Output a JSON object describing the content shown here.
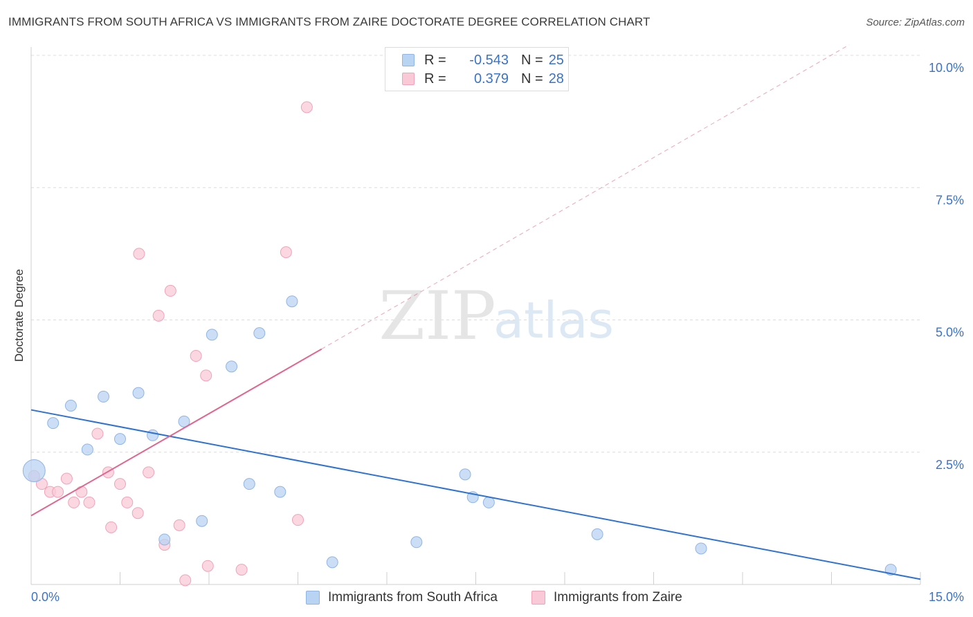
{
  "title": "IMMIGRANTS FROM SOUTH AFRICA VS IMMIGRANTS FROM ZAIRE DOCTORATE DEGREE CORRELATION CHART",
  "source": "Source: ZipAtlas.com",
  "watermark": {
    "zip": "ZIP",
    "atlas": "atlas"
  },
  "legend": {
    "rows": [
      {
        "r_label": "R =",
        "r_value": "-0.543",
        "n_label": "N =",
        "n_value": "25"
      },
      {
        "r_label": "R =",
        "r_value": "0.379",
        "n_label": "N =",
        "n_value": "28"
      }
    ]
  },
  "colors": {
    "blue_fill": "#b9d3f2",
    "blue_stroke": "#8fb5e4",
    "blue_line": "#2f72d0",
    "pink_fill": "#f9c9d7",
    "pink_stroke": "#efa3b9",
    "pink_line": "#e0658f",
    "grid": "#dcdcdc",
    "tick_label": "#3b73c4"
  },
  "chart_data": {
    "type": "scatter",
    "ylabel": "Doctorate Degree",
    "xlim": [
      0,
      15
    ],
    "ylim": [
      0,
      10
    ],
    "x_tick_labels": [
      {
        "value": 0,
        "label": "0.0%"
      },
      {
        "value": 15,
        "label": "15.0%"
      }
    ],
    "y_tick_labels": [
      {
        "value": 2.5,
        "label": "2.5%"
      },
      {
        "value": 5.0,
        "label": "5.0%"
      },
      {
        "value": 7.5,
        "label": "7.5%"
      },
      {
        "value": 10.0,
        "label": "10.0%"
      }
    ],
    "series": [
      {
        "name": "Immigrants from South Africa",
        "color": "blue",
        "points": [
          [
            0.05,
            2.15
          ],
          [
            0.37,
            3.05
          ],
          [
            0.67,
            3.38
          ],
          [
            0.95,
            2.55
          ],
          [
            1.22,
            3.55
          ],
          [
            1.5,
            2.75
          ],
          [
            1.81,
            3.62
          ],
          [
            2.05,
            2.82
          ],
          [
            2.25,
            0.85
          ],
          [
            2.58,
            3.08
          ],
          [
            2.88,
            1.2
          ],
          [
            3.05,
            4.72
          ],
          [
            3.38,
            4.12
          ],
          [
            3.68,
            1.9
          ],
          [
            3.85,
            4.75
          ],
          [
            4.2,
            1.75
          ],
          [
            4.4,
            5.35
          ],
          [
            5.08,
            0.42
          ],
          [
            6.5,
            0.8
          ],
          [
            7.32,
            2.08
          ],
          [
            7.45,
            1.65
          ],
          [
            7.72,
            1.55
          ],
          [
            9.55,
            0.95
          ],
          [
            11.3,
            0.68
          ],
          [
            14.5,
            0.28
          ]
        ],
        "trend": {
          "x": [
            0,
            15
          ],
          "y": [
            3.3,
            0.1
          ]
        }
      },
      {
        "name": "Immigrants from Zaire",
        "color": "pink",
        "points": [
          [
            0.05,
            2.05
          ],
          [
            0.18,
            1.9
          ],
          [
            0.32,
            1.75
          ],
          [
            0.45,
            1.75
          ],
          [
            0.6,
            2.0
          ],
          [
            0.72,
            1.55
          ],
          [
            0.85,
            1.75
          ],
          [
            0.98,
            1.55
          ],
          [
            1.12,
            2.85
          ],
          [
            1.3,
            2.12
          ],
          [
            1.35,
            1.08
          ],
          [
            1.5,
            1.9
          ],
          [
            1.62,
            1.55
          ],
          [
            1.8,
            1.35
          ],
          [
            1.82,
            6.25
          ],
          [
            1.98,
            2.12
          ],
          [
            2.15,
            5.08
          ],
          [
            2.25,
            0.75
          ],
          [
            2.35,
            5.55
          ],
          [
            2.5,
            1.12
          ],
          [
            2.6,
            0.08
          ],
          [
            2.78,
            4.32
          ],
          [
            2.95,
            3.95
          ],
          [
            2.98,
            0.35
          ],
          [
            3.55,
            0.28
          ],
          [
            4.3,
            6.28
          ],
          [
            4.5,
            1.22
          ],
          [
            4.65,
            9.02
          ]
        ],
        "trend": {
          "x": [
            0,
            4.9
          ],
          "y": [
            1.3,
            4.45
          ]
        },
        "trend_extension": {
          "x": [
            4.9,
            13.8
          ],
          "y": [
            4.45,
            10.2
          ]
        }
      }
    ]
  },
  "bottom_legend": [
    {
      "label": "Immigrants from South Africa"
    },
    {
      "label": "Immigrants from Zaire"
    }
  ]
}
